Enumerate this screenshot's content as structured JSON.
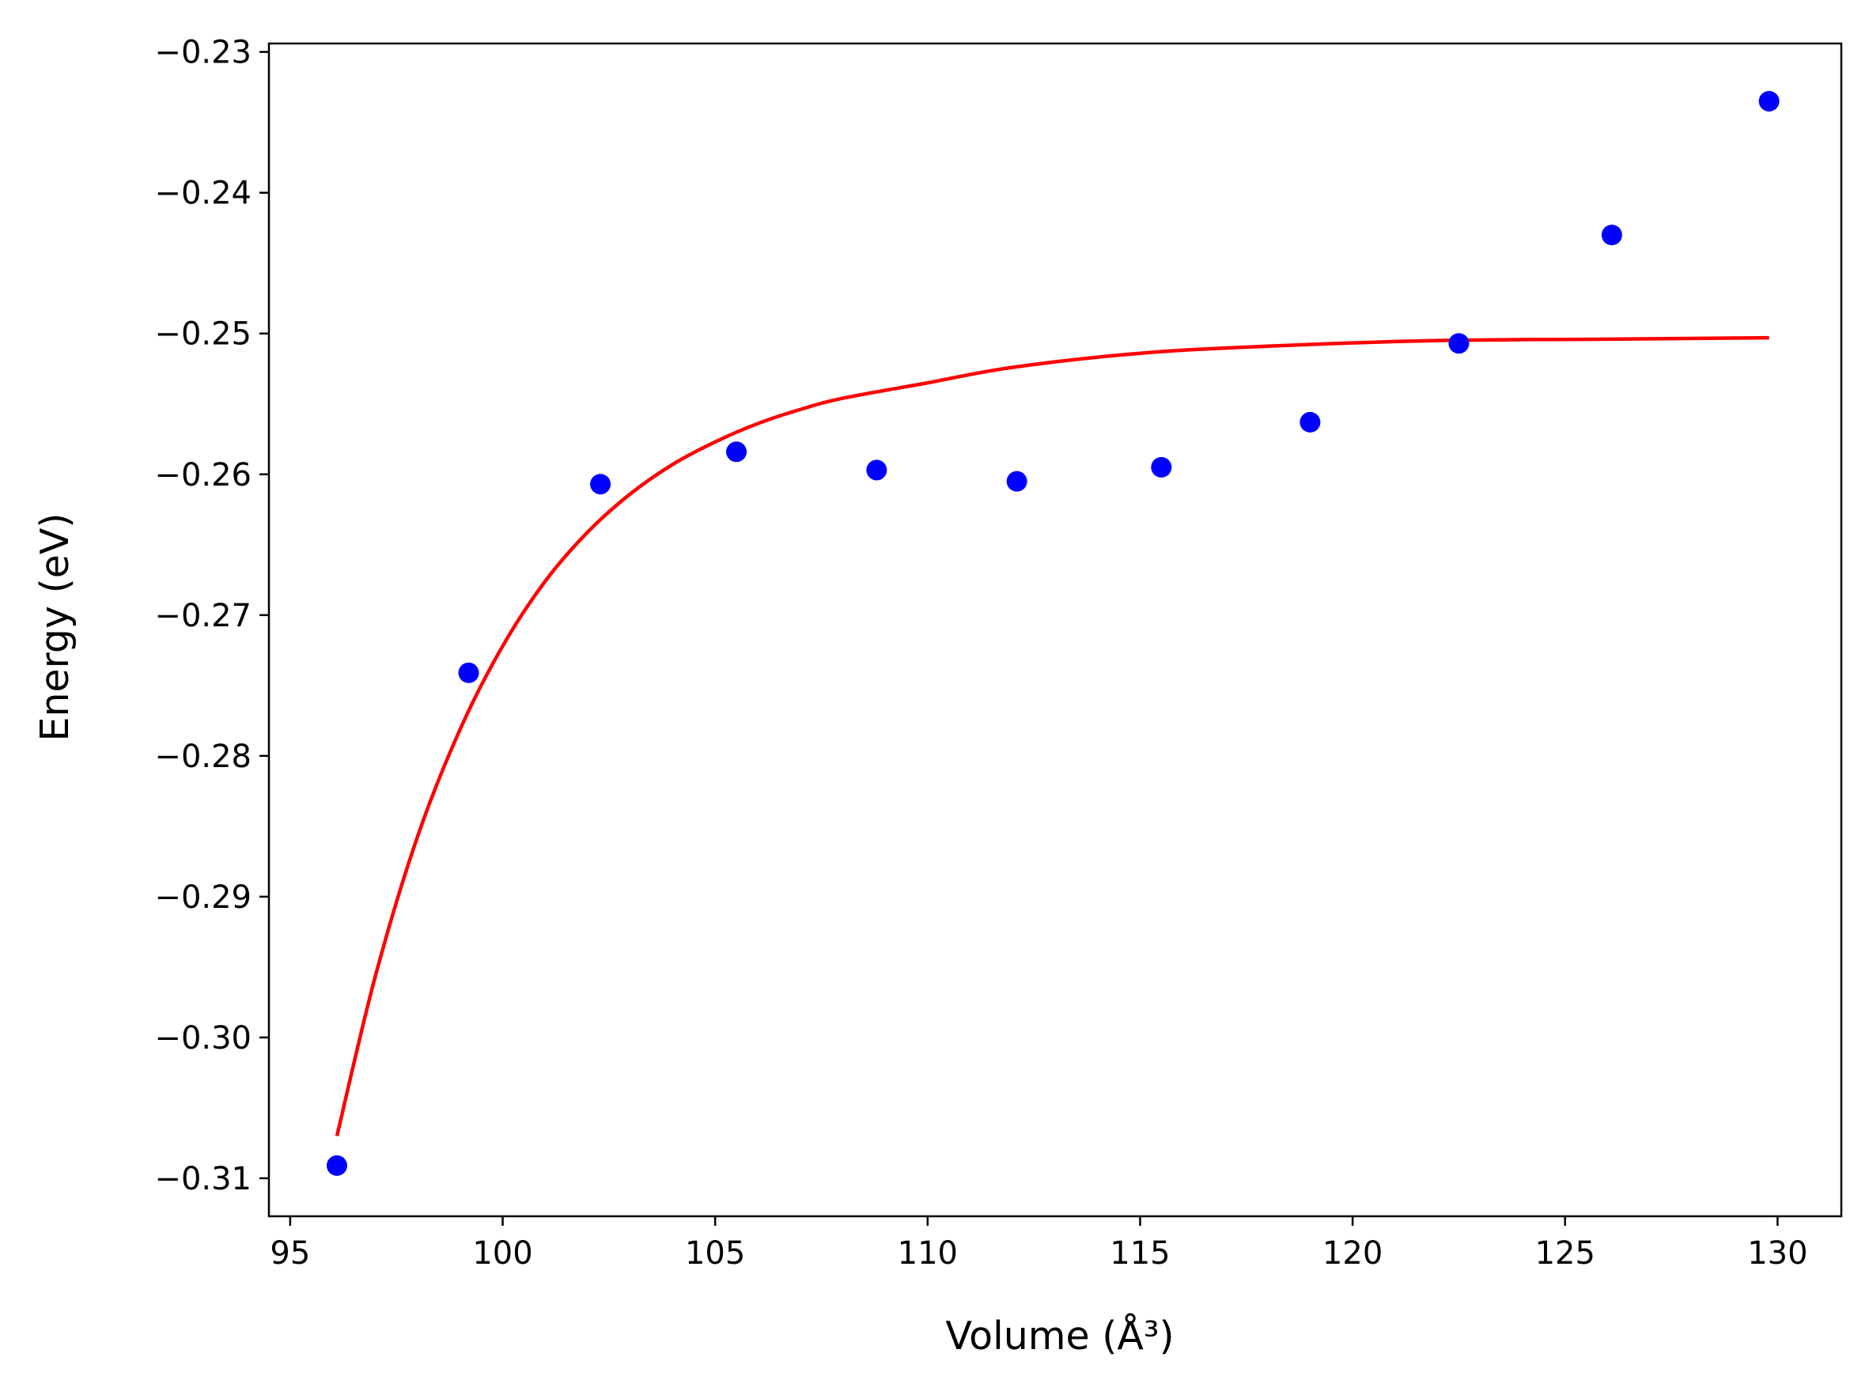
{
  "chart_data": {
    "type": "scatter",
    "xlabel": "Volume (Å³)",
    "ylabel": "Energy (eV)",
    "xlim": [
      94.5,
      131.5
    ],
    "ylim": [
      -0.3127,
      -0.2294
    ],
    "x_ticks": [
      95,
      100,
      105,
      110,
      115,
      120,
      125,
      130
    ],
    "x_tick_labels": [
      "95",
      "100",
      "105",
      "110",
      "115",
      "120",
      "125",
      "130"
    ],
    "y_ticks": [
      -0.31,
      -0.3,
      -0.29,
      -0.28,
      -0.27,
      -0.26,
      -0.25,
      -0.24,
      -0.23
    ],
    "y_tick_labels": [
      "−0.31",
      "−0.30",
      "−0.29",
      "−0.28",
      "−0.27",
      "−0.26",
      "−0.25",
      "−0.24",
      "−0.23"
    ],
    "grid": false,
    "series": [
      {
        "kind": "points",
        "color": "#0000ff",
        "x": [
          96.1,
          99.2,
          102.3,
          105.5,
          108.8,
          112.1,
          115.5,
          119.0,
          122.5,
          126.1,
          129.8
        ],
        "y": [
          -0.3091,
          -0.2741,
          -0.2607,
          -0.2584,
          -0.2597,
          -0.2605,
          -0.2595,
          -0.2563,
          -0.2507,
          -0.243,
          -0.2335
        ]
      },
      {
        "kind": "fit-curve",
        "color": "#ff0000",
        "x": [
          96.1,
          97.0,
          98.0,
          99.0,
          100.0,
          101.0,
          102.0,
          103.0,
          104.0,
          105.0,
          106.0,
          107.0,
          108.0,
          110.0,
          112.0,
          115.0,
          118.0,
          122.0,
          126.0,
          129.8
        ],
        "y": [
          -0.307,
          -0.2957,
          -0.2857,
          -0.2781,
          -0.2722,
          -0.2676,
          -0.2641,
          -0.2614,
          -0.2593,
          -0.2577,
          -0.2564,
          -0.2554,
          -0.2546,
          -0.2535,
          -0.2524,
          -0.2514,
          -0.2509,
          -0.2505,
          -0.2504,
          -0.2503
        ]
      }
    ]
  }
}
